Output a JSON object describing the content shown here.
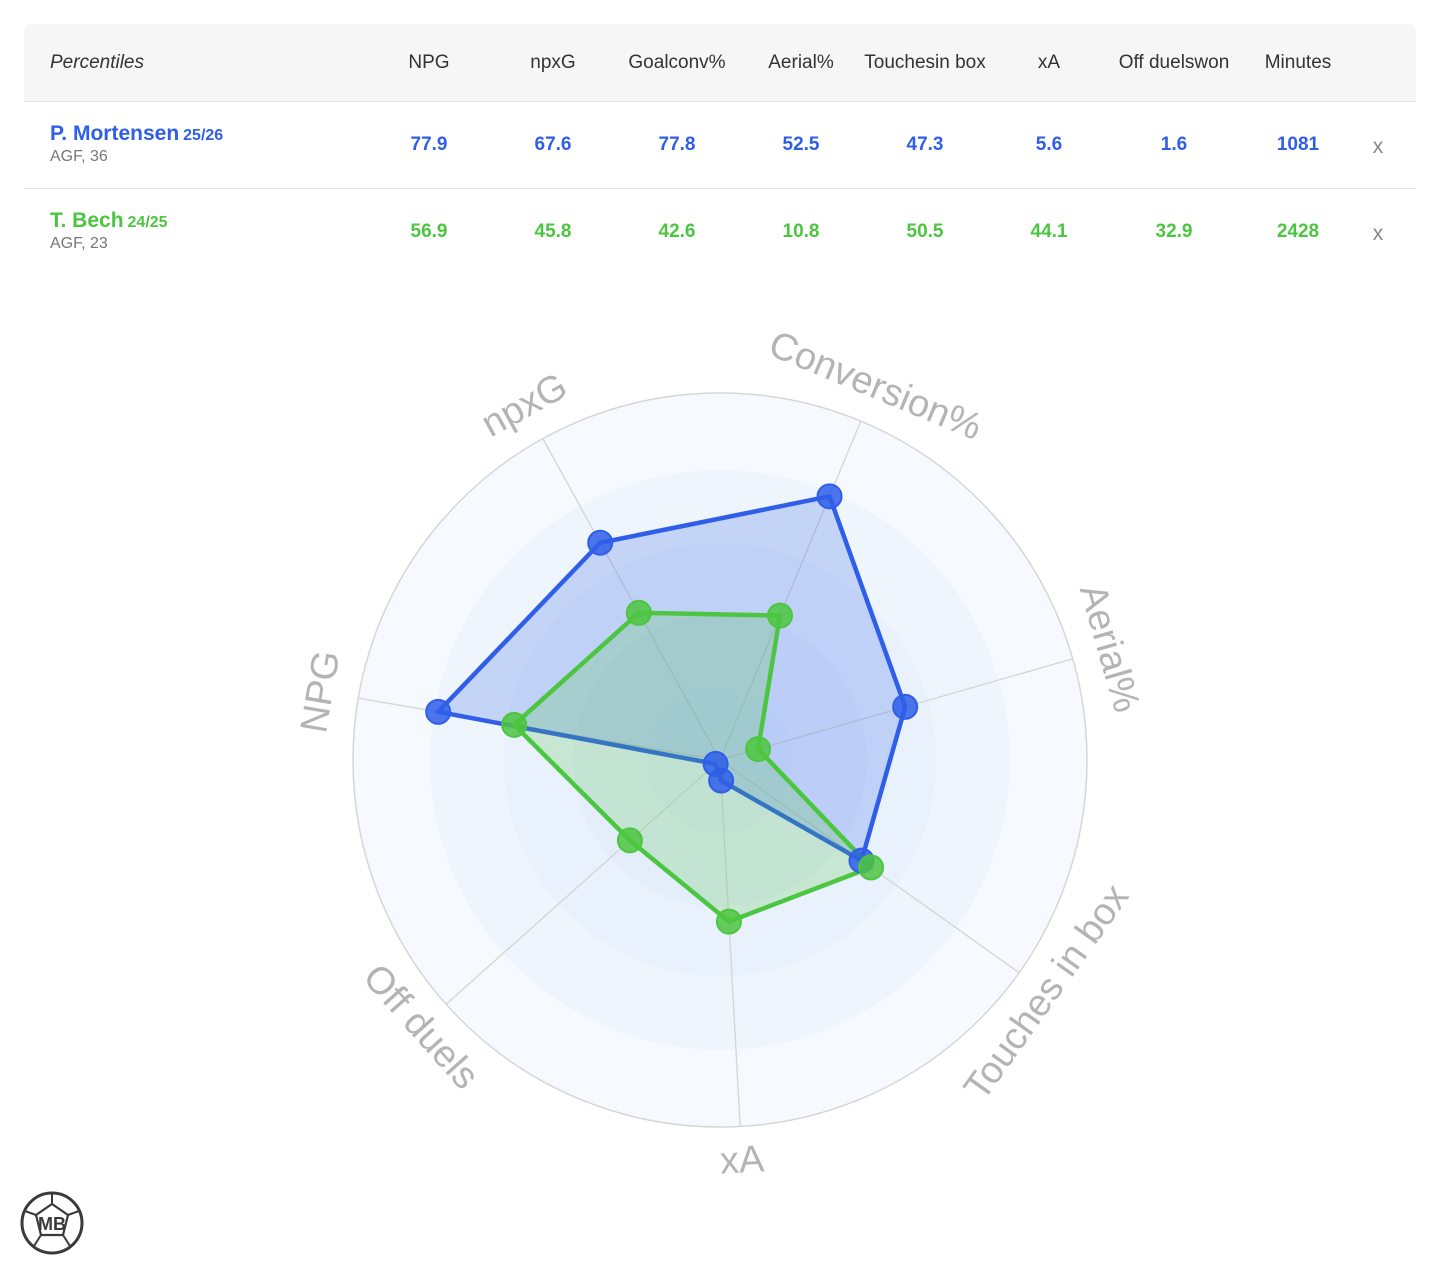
{
  "table": {
    "first_header": "Percentiles",
    "columns": [
      {
        "key": "npg",
        "lines": [
          "NPG"
        ]
      },
      {
        "key": "npxg",
        "lines": [
          "npxG"
        ]
      },
      {
        "key": "goal_conv",
        "lines": [
          "Goal",
          "conv%"
        ]
      },
      {
        "key": "aerial",
        "lines": [
          "Aerial%"
        ]
      },
      {
        "key": "touches",
        "lines": [
          "Touches",
          "in box"
        ]
      },
      {
        "key": "xa",
        "lines": [
          "xA"
        ]
      },
      {
        "key": "off_duels",
        "lines": [
          "Off duels",
          "won"
        ]
      },
      {
        "key": "minutes",
        "lines": [
          "Minutes"
        ]
      }
    ],
    "remove_label": "x"
  },
  "players": [
    {
      "name": "P. Mortensen",
      "season": "25/26",
      "meta": "AGF, 36",
      "color": "#2f5ee8",
      "values": [
        "77.9",
        "67.6",
        "77.8",
        "52.5",
        "47.3",
        "5.6",
        "1.6",
        "1081"
      ]
    },
    {
      "name": "T. Bech",
      "season": "24/25",
      "meta": "AGF, 23",
      "color": "#4cc640",
      "values": [
        "56.9",
        "45.8",
        "42.6",
        "10.8",
        "50.5",
        "44.1",
        "32.9",
        "2428"
      ]
    }
  ],
  "chart_data": {
    "type": "radar",
    "axes": [
      "NPG",
      "npxG",
      "Conversion%",
      "Aerial%",
      "Touches in box",
      "xA",
      "Off duels"
    ],
    "range": [
      0,
      100
    ],
    "series": [
      {
        "name": "P. Mortensen",
        "color": "#2f5ee8",
        "values": [
          77.9,
          67.6,
          77.8,
          52.5,
          47.3,
          5.6,
          1.6
        ]
      },
      {
        "name": "T. Bech",
        "color": "#4cc640",
        "values": [
          56.9,
          45.8,
          42.6,
          10.8,
          50.5,
          44.1,
          32.9
        ]
      }
    ]
  },
  "logo": {
    "text": "MB",
    "icon": "mb-ball-logo"
  }
}
